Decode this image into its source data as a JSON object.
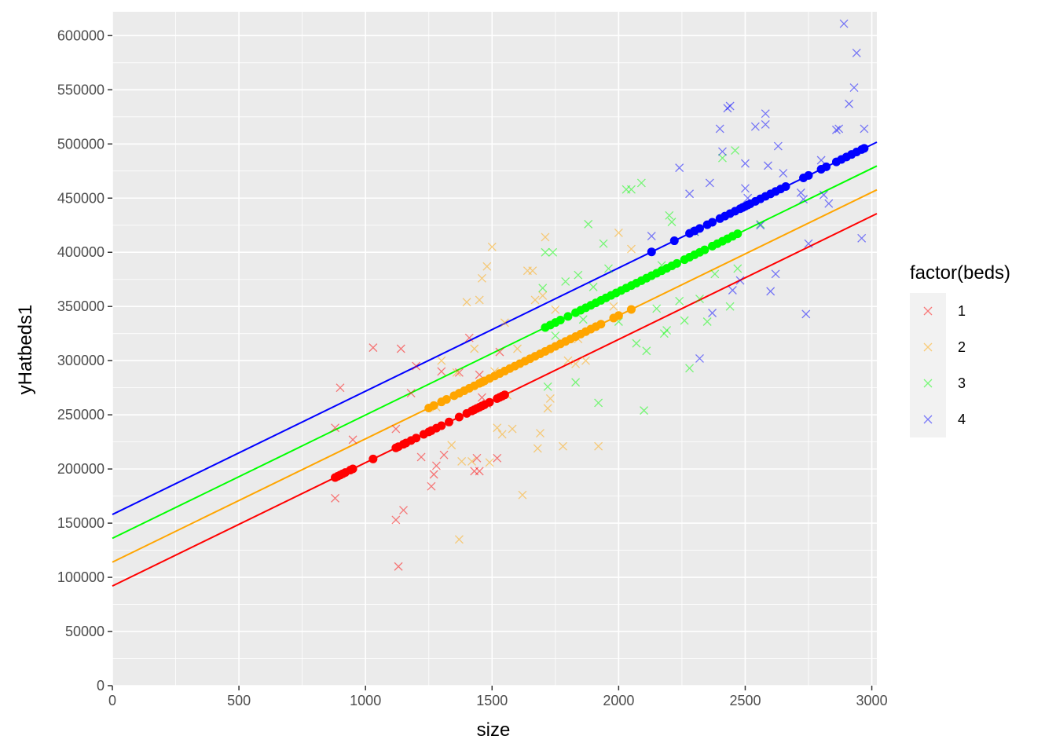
{
  "chart_data": {
    "type": "scatter",
    "title": "",
    "xlabel": "size",
    "ylabel": "yHatbeds1",
    "xlim": [
      0,
      3020
    ],
    "ylim": [
      0,
      622000
    ],
    "x_ticks": [
      0,
      500,
      1000,
      1500,
      2000,
      2500,
      3000
    ],
    "y_ticks": [
      0,
      50000,
      100000,
      150000,
      200000,
      250000,
      300000,
      350000,
      400000,
      450000,
      500000,
      550000,
      600000
    ],
    "grid": true,
    "panel_background": "#ebebeb",
    "legend": {
      "title": "factor(beds)",
      "position": "right",
      "entries": [
        "1",
        "2",
        "3",
        "4"
      ]
    },
    "series": [
      {
        "name": "1",
        "color": "#ff0000",
        "line": {
          "intercept": 92000,
          "slope": 113.8,
          "x_range": [
            0,
            3020
          ]
        },
        "fitted_x": [
          880,
          890,
          900,
          910,
          920,
          940,
          950,
          1030,
          1120,
          1130,
          1150,
          1160,
          1180,
          1200,
          1230,
          1250,
          1260,
          1280,
          1300,
          1330,
          1370,
          1400,
          1420,
          1430,
          1440,
          1450,
          1460,
          1470,
          1490,
          1520,
          1530,
          1540,
          1550
        ],
        "observed": [
          [
            880,
            238000
          ],
          [
            880,
            173000
          ],
          [
            900,
            275000
          ],
          [
            950,
            227000
          ],
          [
            1030,
            312000
          ],
          [
            1120,
            153000
          ],
          [
            1130,
            110000
          ],
          [
            1140,
            311000
          ],
          [
            1150,
            162000
          ],
          [
            1120,
            237000
          ],
          [
            1180,
            270000
          ],
          [
            1200,
            295000
          ],
          [
            1220,
            211000
          ],
          [
            1260,
            184000
          ],
          [
            1270,
            195000
          ],
          [
            1280,
            203000
          ],
          [
            1300,
            290000
          ],
          [
            1310,
            213000
          ],
          [
            1370,
            289000
          ],
          [
            1410,
            321000
          ],
          [
            1430,
            198000
          ],
          [
            1440,
            210000
          ],
          [
            1450,
            198000
          ],
          [
            1450,
            287000
          ],
          [
            1460,
            266000
          ],
          [
            1520,
            210000
          ],
          [
            1530,
            308000
          ],
          [
            1480,
            260000
          ]
        ]
      },
      {
        "name": "2",
        "color": "#ffa500",
        "line": {
          "intercept": 114000,
          "slope": 113.8,
          "x_range": [
            0,
            3020
          ]
        },
        "fitted_x": [
          1250,
          1270,
          1300,
          1320,
          1350,
          1370,
          1390,
          1410,
          1430,
          1450,
          1460,
          1470,
          1490,
          1510,
          1530,
          1550,
          1570,
          1590,
          1610,
          1630,
          1650,
          1670,
          1690,
          1710,
          1730,
          1750,
          1770,
          1790,
          1810,
          1830,
          1850,
          1870,
          1890,
          1910,
          1930,
          1980,
          2000,
          2050
        ],
        "observed": [
          [
            1280,
            257000
          ],
          [
            1300,
            300000
          ],
          [
            1340,
            222000
          ],
          [
            1360,
            289000
          ],
          [
            1370,
            135000
          ],
          [
            1380,
            207000
          ],
          [
            1400,
            354000
          ],
          [
            1420,
            207000
          ],
          [
            1430,
            311000
          ],
          [
            1450,
            356000
          ],
          [
            1460,
            376000
          ],
          [
            1480,
            387000
          ],
          [
            1490,
            206000
          ],
          [
            1500,
            405000
          ],
          [
            1510,
            290000
          ],
          [
            1520,
            238000
          ],
          [
            1540,
            232000
          ],
          [
            1550,
            335000
          ],
          [
            1560,
            268000
          ],
          [
            1580,
            237000
          ],
          [
            1600,
            311000
          ],
          [
            1620,
            176000
          ],
          [
            1640,
            383000
          ],
          [
            1660,
            383000
          ],
          [
            1670,
            356000
          ],
          [
            1680,
            219000
          ],
          [
            1690,
            233000
          ],
          [
            1700,
            360000
          ],
          [
            1710,
            414000
          ],
          [
            1720,
            256000
          ],
          [
            1730,
            265000
          ],
          [
            1750,
            347000
          ],
          [
            1780,
            221000
          ],
          [
            1800,
            300000
          ],
          [
            1830,
            297000
          ],
          [
            1840,
            320000
          ],
          [
            1870,
            300000
          ],
          [
            1920,
            221000
          ],
          [
            1980,
            350000
          ],
          [
            2000,
            418000
          ],
          [
            2050,
            403000
          ]
        ]
      },
      {
        "name": "3",
        "color": "#00ff00",
        "line": {
          "intercept": 136000,
          "slope": 113.8,
          "x_range": [
            0,
            3020
          ]
        },
        "fitted_x": [
          1710,
          1730,
          1750,
          1770,
          1800,
          1830,
          1850,
          1870,
          1890,
          1910,
          1930,
          1950,
          1970,
          1990,
          2010,
          2030,
          2050,
          2070,
          2090,
          2110,
          2130,
          2150,
          2170,
          2190,
          2210,
          2230,
          2260,
          2280,
          2300,
          2320,
          2340,
          2370,
          2390,
          2410,
          2430,
          2450,
          2470
        ],
        "observed": [
          [
            1700,
            367000
          ],
          [
            1710,
            400000
          ],
          [
            1720,
            276000
          ],
          [
            1740,
            400000
          ],
          [
            1750,
            323000
          ],
          [
            1790,
            373000
          ],
          [
            1830,
            280000
          ],
          [
            1840,
            379000
          ],
          [
            1860,
            338000
          ],
          [
            1880,
            426000
          ],
          [
            1900,
            368000
          ],
          [
            1920,
            261000
          ],
          [
            1940,
            408000
          ],
          [
            1960,
            385000
          ],
          [
            2000,
            336000
          ],
          [
            2030,
            458000
          ],
          [
            2050,
            458000
          ],
          [
            2070,
            316000
          ],
          [
            2090,
            464000
          ],
          [
            2100,
            254000
          ],
          [
            2110,
            309000
          ],
          [
            2150,
            348000
          ],
          [
            2170,
            388000
          ],
          [
            2180,
            325000
          ],
          [
            2190,
            328000
          ],
          [
            2200,
            434000
          ],
          [
            2210,
            428000
          ],
          [
            2240,
            355000
          ],
          [
            2260,
            337000
          ],
          [
            2280,
            293000
          ],
          [
            2300,
            419000
          ],
          [
            2320,
            357000
          ],
          [
            2350,
            336000
          ],
          [
            2380,
            380000
          ],
          [
            2410,
            487000
          ],
          [
            2440,
            350000
          ],
          [
            2460,
            494000
          ],
          [
            2470,
            385000
          ],
          [
            2560,
            426000
          ]
        ]
      },
      {
        "name": "4",
        "color": "#0000ff",
        "line": {
          "intercept": 158000,
          "slope": 113.8,
          "x_range": [
            0,
            3020
          ]
        },
        "fitted_x": [
          2130,
          2220,
          2280,
          2300,
          2320,
          2350,
          2370,
          2400,
          2420,
          2440,
          2460,
          2480,
          2490,
          2500,
          2510,
          2520,
          2540,
          2560,
          2580,
          2600,
          2620,
          2640,
          2660,
          2730,
          2750,
          2800,
          2820,
          2860,
          2880,
          2900,
          2920,
          2940,
          2960,
          2970
        ],
        "observed": [
          [
            2130,
            415000
          ],
          [
            2240,
            478000
          ],
          [
            2280,
            454000
          ],
          [
            2300,
            419000
          ],
          [
            2320,
            302000
          ],
          [
            2360,
            464000
          ],
          [
            2370,
            344000
          ],
          [
            2400,
            514000
          ],
          [
            2410,
            493000
          ],
          [
            2430,
            533000
          ],
          [
            2440,
            535000
          ],
          [
            2450,
            365000
          ],
          [
            2480,
            374000
          ],
          [
            2500,
            482000
          ],
          [
            2500,
            459000
          ],
          [
            2510,
            450000
          ],
          [
            2540,
            516000
          ],
          [
            2560,
            425000
          ],
          [
            2580,
            528000
          ],
          [
            2580,
            518000
          ],
          [
            2590,
            480000
          ],
          [
            2600,
            364000
          ],
          [
            2620,
            380000
          ],
          [
            2630,
            498000
          ],
          [
            2650,
            473000
          ],
          [
            2720,
            455000
          ],
          [
            2730,
            449000
          ],
          [
            2740,
            343000
          ],
          [
            2750,
            408000
          ],
          [
            2800,
            485000
          ],
          [
            2810,
            453000
          ],
          [
            2830,
            445000
          ],
          [
            2860,
            513000
          ],
          [
            2870,
            514000
          ],
          [
            2890,
            611000
          ],
          [
            2910,
            537000
          ],
          [
            2930,
            552000
          ],
          [
            2940,
            584000
          ],
          [
            2960,
            413000
          ],
          [
            2970,
            514000
          ]
        ]
      }
    ]
  }
}
